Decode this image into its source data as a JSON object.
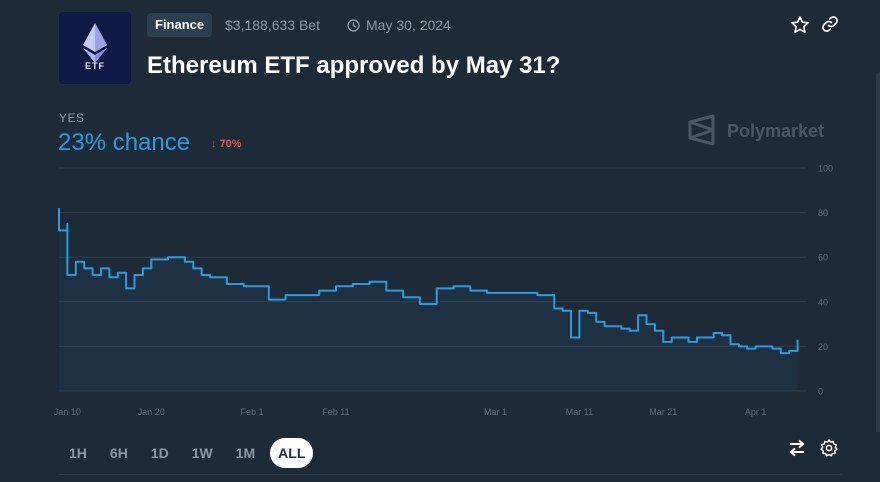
{
  "market": {
    "thumb_text": "ETF",
    "category": "Finance",
    "volume": "$3,188,633 Bet",
    "date": "May 30, 2024",
    "title": "Ethereum ETF approved by May 31?"
  },
  "outcome": {
    "label": "YES",
    "chance": "23% chance",
    "change": "70%",
    "change_direction": "down"
  },
  "brand": "Polymarket",
  "colors": {
    "background": "#1d2b39",
    "accent": "#2e9bdb",
    "negative": "#e2514c",
    "muted": "#8a98a8"
  },
  "ranges": {
    "items": [
      "1H",
      "6H",
      "1D",
      "1W",
      "1M",
      "ALL"
    ],
    "selected": "ALL"
  },
  "chart_data": {
    "type": "line",
    "x_ticks": [
      "Jan 10",
      "Jan 20",
      "Feb 1",
      "Feb 11",
      "Mar 1",
      "Mar 11",
      "Mar 21",
      "Apr 1"
    ],
    "y_ticks": [
      "0",
      "20",
      "40",
      "60",
      "80",
      "100"
    ],
    "ylim": [
      0,
      100
    ],
    "xlim": [
      "2024-01-09",
      "2024-04-07"
    ],
    "grid": true,
    "series": [
      {
        "values": [
          [
            "2024-01-09",
            82
          ],
          [
            "2024-01-09",
            72
          ],
          [
            "2024-01-10",
            75
          ],
          [
            "2024-01-10",
            52
          ],
          [
            "2024-01-11",
            58
          ],
          [
            "2024-01-12",
            55
          ],
          [
            "2024-01-13",
            52
          ],
          [
            "2024-01-14",
            55
          ],
          [
            "2024-01-15",
            51
          ],
          [
            "2024-01-16",
            53
          ],
          [
            "2024-01-17",
            46
          ],
          [
            "2024-01-18",
            52
          ],
          [
            "2024-01-19",
            55
          ],
          [
            "2024-01-20",
            59
          ],
          [
            "2024-01-22",
            60
          ],
          [
            "2024-01-24",
            58
          ],
          [
            "2024-01-25",
            55
          ],
          [
            "2024-01-26",
            52
          ],
          [
            "2024-01-27",
            51
          ],
          [
            "2024-01-29",
            48
          ],
          [
            "2024-01-31",
            47
          ],
          [
            "2024-02-02",
            47
          ],
          [
            "2024-02-03",
            41
          ],
          [
            "2024-02-05",
            43
          ],
          [
            "2024-02-08",
            43
          ],
          [
            "2024-02-09",
            45
          ],
          [
            "2024-02-11",
            47
          ],
          [
            "2024-02-13",
            48
          ],
          [
            "2024-02-15",
            49
          ],
          [
            "2024-02-17",
            45
          ],
          [
            "2024-02-19",
            42
          ],
          [
            "2024-02-21",
            39
          ],
          [
            "2024-02-23",
            46
          ],
          [
            "2024-02-25",
            47
          ],
          [
            "2024-02-27",
            45
          ],
          [
            "2024-02-29",
            44
          ],
          [
            "2024-03-02",
            44
          ],
          [
            "2024-03-04",
            44
          ],
          [
            "2024-03-06",
            43
          ],
          [
            "2024-03-08",
            37
          ],
          [
            "2024-03-09",
            36
          ],
          [
            "2024-03-10",
            24
          ],
          [
            "2024-03-11",
            36
          ],
          [
            "2024-03-12",
            35
          ],
          [
            "2024-03-13",
            31
          ],
          [
            "2024-03-14",
            29
          ],
          [
            "2024-03-16",
            28
          ],
          [
            "2024-03-17",
            27
          ],
          [
            "2024-03-18",
            34
          ],
          [
            "2024-03-19",
            30
          ],
          [
            "2024-03-20",
            27
          ],
          [
            "2024-03-21",
            22
          ],
          [
            "2024-03-22",
            24
          ],
          [
            "2024-03-24",
            22
          ],
          [
            "2024-03-25",
            24
          ],
          [
            "2024-03-27",
            26
          ],
          [
            "2024-03-28",
            25
          ],
          [
            "2024-03-29",
            21
          ],
          [
            "2024-03-30",
            20
          ],
          [
            "2024-03-31",
            19
          ],
          [
            "2024-04-01",
            20
          ],
          [
            "2024-04-03",
            19
          ],
          [
            "2024-04-04",
            17
          ],
          [
            "2024-04-05",
            18
          ],
          [
            "2024-04-06",
            20
          ],
          [
            "2024-04-06",
            23
          ]
        ]
      }
    ]
  }
}
